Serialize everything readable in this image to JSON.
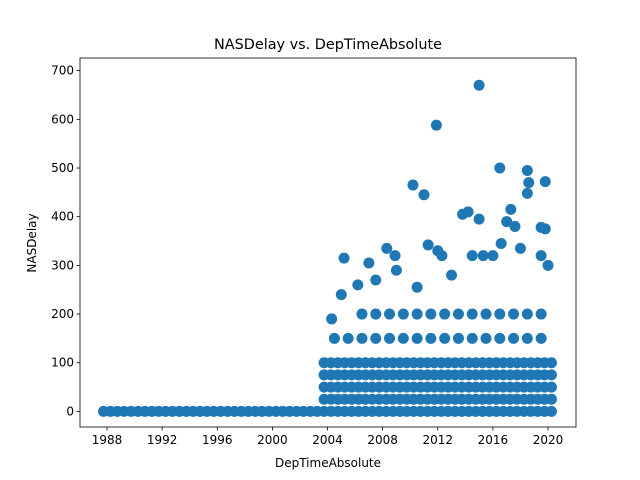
{
  "chart_data": {
    "type": "scatter",
    "title": "NASDelay vs. DepTimeAbsolute",
    "xlabel": "DepTimeAbsolute",
    "ylabel": "NASDelay",
    "color": "#1f77b4",
    "grid": false,
    "xlim": [
      1986.04,
      2022.03
    ],
    "xticks": [
      1988,
      1992,
      1996,
      2000,
      2004,
      2008,
      2012,
      2016,
      2020
    ],
    "ylim": [
      -32,
      726
    ],
    "yticks": [
      0,
      100,
      200,
      300,
      400,
      500,
      600,
      700
    ],
    "x": [
      1987.75,
      1988.25,
      1988.75,
      1989.25,
      1989.75,
      1990.25,
      1990.75,
      1991.25,
      1991.75,
      1992.25,
      1992.75,
      1993.25,
      1993.75,
      1994.25,
      1994.75,
      1995.25,
      1995.75,
      1996.25,
      1996.75,
      1997.25,
      1997.75,
      1998.25,
      1998.75,
      1999.25,
      1999.75,
      2000.25,
      2000.75,
      2001.25,
      2001.75,
      2002.25,
      2002.75,
      2003.25,
      2003.75,
      2003.75,
      2003.75,
      2003.75,
      2003.75,
      2004.25,
      2004.25,
      2004.25,
      2004.25,
      2004.25,
      2004.75,
      2004.75,
      2004.75,
      2004.75,
      2004.75,
      2005.25,
      2005.25,
      2005.25,
      2005.25,
      2005.25,
      2005.75,
      2005.75,
      2005.75,
      2005.75,
      2005.75,
      2006.25,
      2006.25,
      2006.25,
      2006.25,
      2006.25,
      2006.75,
      2006.75,
      2006.75,
      2006.75,
      2006.75,
      2007.25,
      2007.25,
      2007.25,
      2007.25,
      2007.25,
      2007.75,
      2007.75,
      2007.75,
      2007.75,
      2007.75,
      2008.25,
      2008.25,
      2008.25,
      2008.25,
      2008.25,
      2008.75,
      2008.75,
      2008.75,
      2008.75,
      2008.75,
      2009.25,
      2009.25,
      2009.25,
      2009.25,
      2009.25,
      2009.75,
      2009.75,
      2009.75,
      2009.75,
      2009.75,
      2010.25,
      2010.25,
      2010.25,
      2010.25,
      2010.25,
      2010.75,
      2010.75,
      2010.75,
      2010.75,
      2010.75,
      2011.25,
      2011.25,
      2011.25,
      2011.25,
      2011.25,
      2011.75,
      2011.75,
      2011.75,
      2011.75,
      2011.75,
      2012.25,
      2012.25,
      2012.25,
      2012.25,
      2012.25,
      2012.75,
      2012.75,
      2012.75,
      2012.75,
      2012.75,
      2013.25,
      2013.25,
      2013.25,
      2013.25,
      2013.25,
      2013.75,
      2013.75,
      2013.75,
      2013.75,
      2013.75,
      2014.25,
      2014.25,
      2014.25,
      2014.25,
      2014.25,
      2014.75,
      2014.75,
      2014.75,
      2014.75,
      2014.75,
      2015.25,
      2015.25,
      2015.25,
      2015.25,
      2015.25,
      2015.75,
      2015.75,
      2015.75,
      2015.75,
      2015.75,
      2016.25,
      2016.25,
      2016.25,
      2016.25,
      2016.25,
      2016.75,
      2016.75,
      2016.75,
      2016.75,
      2016.75,
      2017.25,
      2017.25,
      2017.25,
      2017.25,
      2017.25,
      2017.75,
      2017.75,
      2017.75,
      2017.75,
      2017.75,
      2018.25,
      2018.25,
      2018.25,
      2018.25,
      2018.25,
      2018.75,
      2018.75,
      2018.75,
      2018.75,
      2018.75,
      2019.25,
      2019.25,
      2019.25,
      2019.25,
      2019.25,
      2019.75,
      2019.75,
      2019.75,
      2019.75,
      2019.75,
      2020.25,
      2020.25,
      2020.25,
      2020.25,
      2020.25,
      2004.5,
      2005.5,
      2006.5,
      2007.5,
      2008.5,
      2009.5,
      2010.5,
      2011.5,
      2012.5,
      2013.5,
      2014.5,
      2015.5,
      2016.5,
      2017.5,
      2018.5,
      2019.5,
      2006.5,
      2007.5,
      2008.5,
      2009.5,
      2010.5,
      2011.5,
      2012.5,
      2013.5,
      2014.5,
      2015.5,
      2016.5,
      2017.5,
      2018.5,
      2019.5,
      2004.3,
      2005.2,
      2005.0,
      2006.2,
      2007.0,
      2007.5,
      2008.3,
      2008.9,
      2009.0,
      2010.2,
      2011.0,
      2011.3,
      2011.9,
      2012.0,
      2012.3,
      2013.8,
      2014.2,
      2014.5,
      2015.0,
      2015.0,
      2015.3,
      2016.0,
      2016.5,
      2016.6,
      2017.0,
      2017.3,
      2017.6,
      2018.0,
      2018.5,
      2018.6,
      2018.5,
      2019.5,
      2019.8,
      2019.8,
      2019.5,
      2020.0,
      2013.0,
      2010.5
    ],
    "values": [
      0,
      0,
      0,
      0,
      0,
      0,
      0,
      0,
      0,
      0,
      0,
      0,
      0,
      0,
      0,
      0,
      0,
      0,
      0,
      0,
      0,
      0,
      0,
      0,
      0,
      0,
      0,
      0,
      0,
      0,
      0,
      0,
      0,
      25,
      50,
      75,
      100,
      0,
      25,
      50,
      75,
      100,
      0,
      25,
      50,
      75,
      100,
      0,
      25,
      50,
      75,
      100,
      0,
      25,
      50,
      75,
      100,
      0,
      25,
      50,
      75,
      100,
      0,
      25,
      50,
      75,
      100,
      0,
      25,
      50,
      75,
      100,
      0,
      25,
      50,
      75,
      100,
      0,
      25,
      50,
      75,
      100,
      0,
      25,
      50,
      75,
      100,
      0,
      25,
      50,
      75,
      100,
      0,
      25,
      50,
      75,
      100,
      0,
      25,
      50,
      75,
      100,
      0,
      25,
      50,
      75,
      100,
      0,
      25,
      50,
      75,
      100,
      0,
      25,
      50,
      75,
      100,
      0,
      25,
      50,
      75,
      100,
      0,
      25,
      50,
      75,
      100,
      0,
      25,
      50,
      75,
      100,
      0,
      25,
      50,
      75,
      100,
      0,
      25,
      50,
      75,
      100,
      0,
      25,
      50,
      75,
      100,
      0,
      25,
      50,
      75,
      100,
      0,
      25,
      50,
      75,
      100,
      0,
      25,
      50,
      75,
      100,
      0,
      25,
      50,
      75,
      100,
      0,
      25,
      50,
      75,
      100,
      0,
      25,
      50,
      75,
      100,
      0,
      25,
      50,
      75,
      100,
      0,
      25,
      50,
      75,
      100,
      0,
      25,
      50,
      75,
      100,
      0,
      25,
      50,
      75,
      100,
      0,
      25,
      50,
      75,
      100,
      150,
      150,
      150,
      150,
      150,
      150,
      150,
      150,
      150,
      150,
      150,
      150,
      150,
      150,
      150,
      150,
      200,
      200,
      200,
      200,
      200,
      200,
      200,
      200,
      200,
      200,
      200,
      200,
      200,
      200,
      190,
      315,
      240,
      260,
      305,
      270,
      335,
      320,
      290,
      465,
      445,
      342,
      588,
      330,
      320,
      405,
      410,
      320,
      670,
      395,
      320,
      320,
      500,
      345,
      390,
      415,
      380,
      335,
      495,
      470,
      448,
      378,
      472,
      375,
      320,
      300,
      280,
      255
    ]
  }
}
